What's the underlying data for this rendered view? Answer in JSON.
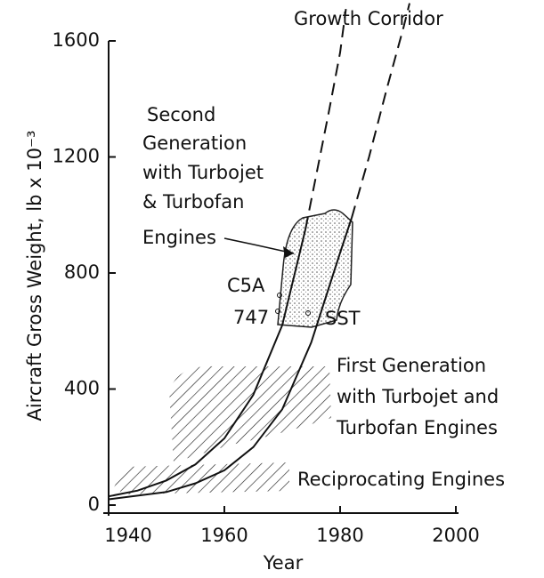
{
  "chart_data": {
    "type": "line",
    "x_label": "Year",
    "y_label": "Aircraft Gross Weight, lb x 10⁻³",
    "xlim": [
      1940,
      2000
    ],
    "xticks": [
      1940,
      1960,
      1980,
      2000
    ],
    "ylim": [
      0,
      1600
    ],
    "yticks": [
      0,
      400,
      800,
      1200,
      1600
    ],
    "color": "#111111",
    "series": [
      {
        "style": "solid",
        "x": [
          1940,
          1945,
          1950,
          1955,
          1960,
          1965,
          1970,
          1974
        ],
        "values": [
          30,
          50,
          85,
          140,
          230,
          380,
          620,
          950
        ]
      },
      {
        "style": "dashed",
        "x": [
          1974,
          1976,
          1978,
          1980,
          1981
        ],
        "values": [
          950,
          1150,
          1350,
          1560,
          1710
        ]
      },
      {
        "style": "solid",
        "x": [
          1940,
          1950,
          1955,
          1960,
          1965,
          1970,
          1975,
          1980,
          1982
        ],
        "values": [
          20,
          45,
          75,
          120,
          200,
          330,
          560,
          870,
          990
        ]
      },
      {
        "style": "dashed",
        "x": [
          1982,
          1985,
          1988,
          1991,
          1992
        ],
        "values": [
          990,
          1200,
          1430,
          1650,
          1730
        ]
      }
    ],
    "annotations": {
      "growth_corridor": "Growth Corridor",
      "second_generation": [
        "Second",
        "Generation",
        "with Turbojet",
        "& Turbofan",
        "Engines"
      ],
      "c5a": "C5A",
      "b747": "747",
      "sst": "SST",
      "first_generation": [
        "First Generation",
        "with Turbojet and",
        "Turbofan Engines"
      ],
      "reciprocating": "Reciprocating Engines"
    }
  }
}
